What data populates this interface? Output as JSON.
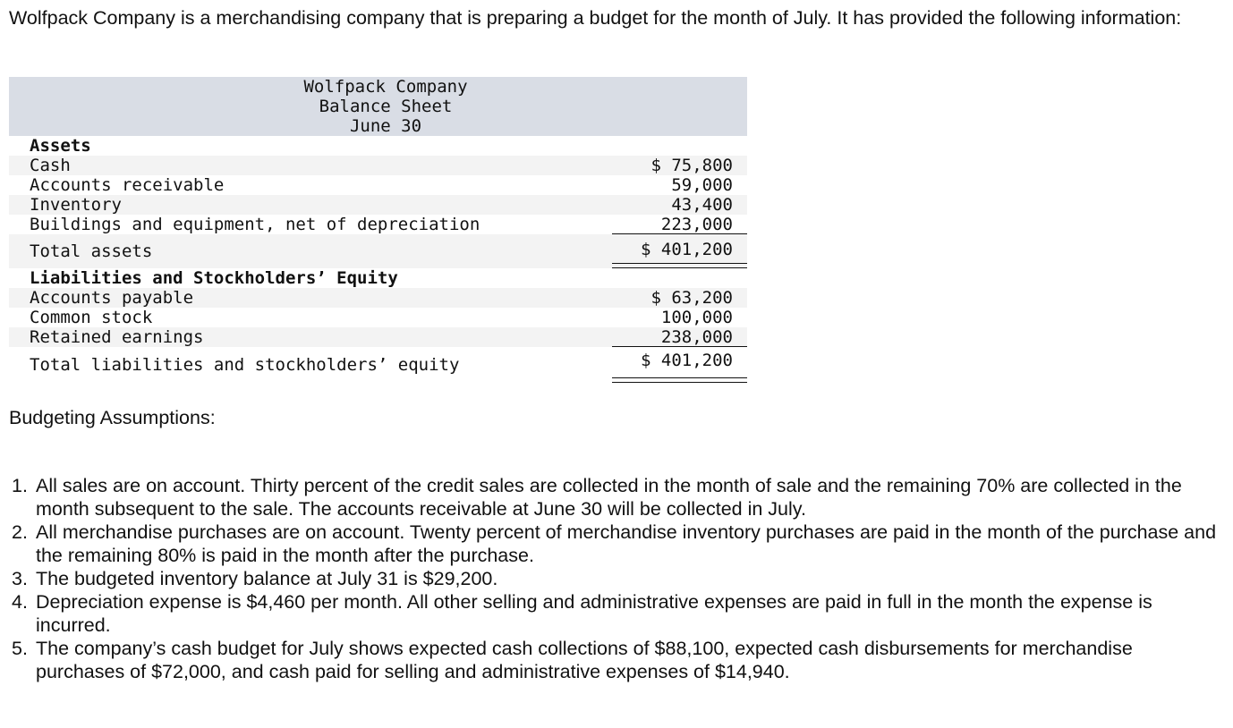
{
  "intro": "Wolfpack Company is a merchandising company that is preparing a budget for the month of July. It has provided the following information:",
  "balance_sheet": {
    "header": [
      "Wolfpack Company",
      "Balance Sheet",
      "June 30"
    ],
    "assets_heading": "Assets",
    "assets": [
      {
        "label": "Cash",
        "amount": "$ 75,800"
      },
      {
        "label": "Accounts receivable",
        "amount": "59,000"
      },
      {
        "label": "Inventory",
        "amount": "43,400"
      },
      {
        "label": "Buildings and equipment, net of depreciation",
        "amount": "223,000"
      }
    ],
    "total_assets": {
      "label": "Total assets",
      "amount": "$ 401,200"
    },
    "liabilities_heading": "Liabilities and Stockholders’ Equity",
    "liabilities": [
      {
        "label": "Accounts payable",
        "amount": "$ 63,200"
      },
      {
        "label": "Common stock",
        "amount": "100,000"
      },
      {
        "label": "Retained earnings",
        "amount": "238,000"
      }
    ],
    "total_liabilities": {
      "label": "Total liabilities and stockholders’ equity",
      "amount": "$ 401,200"
    }
  },
  "assumptions_title": "Budgeting Assumptions:",
  "assumptions": [
    {
      "num": "1.",
      "text": "All sales are on account. Thirty percent of the credit sales are collected in the month of sale and the remaining 70% are collected in the month subsequent to the sale. The accounts receivable at June 30 will be collected in July."
    },
    {
      "num": "2.",
      "text": "All merchandise purchases are on account. Twenty percent of merchandise inventory purchases are paid in the month of the purchase and the remaining 80% is paid in the month after the purchase."
    },
    {
      "num": "3.",
      "text": "The budgeted inventory balance at July 31 is $29,200."
    },
    {
      "num": "4.",
      "text": "Depreciation expense is $4,460 per month. All other selling and administrative expenses are paid in full in the month the expense is incurred."
    },
    {
      "num": "5.",
      "text": "The company’s cash budget for July shows expected cash collections of $88,100, expected cash disbursements for merchandise purchases of $72,000, and cash paid for selling and administrative expenses of $14,940."
    }
  ]
}
